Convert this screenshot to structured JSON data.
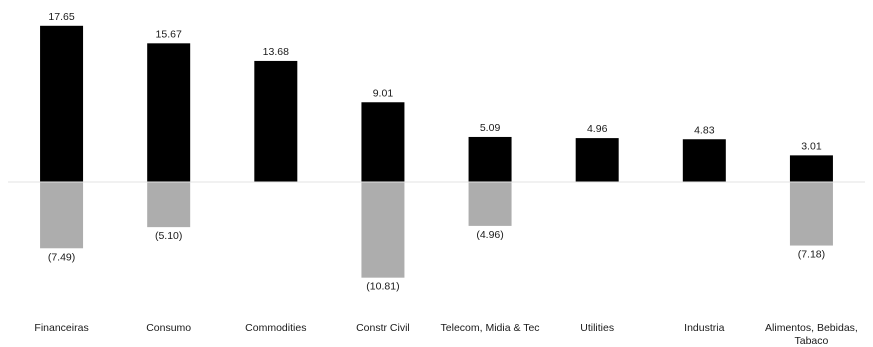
{
  "chart_data": {
    "type": "bar",
    "categories": [
      [
        "Financeiras"
      ],
      [
        "Consumo"
      ],
      [
        "Commodities"
      ],
      [
        "Constr Civil"
      ],
      [
        "Telecom, Midia & Tec"
      ],
      [
        "Utilities"
      ],
      [
        "Industria"
      ],
      [
        "Alimentos, Bebidas,",
        "Tabaco"
      ]
    ],
    "series": [
      {
        "values": [
          17.65,
          15.67,
          13.68,
          9.01,
          5.09,
          4.96,
          4.83,
          3.01
        ],
        "labels": [
          "17.65",
          "15.67",
          "13.68",
          "9.01",
          "5.09",
          "4.96",
          "4.83",
          "3.01"
        ],
        "color": "#000000"
      },
      {
        "values": [
          -7.49,
          -5.1,
          null,
          -10.81,
          -4.96,
          null,
          null,
          -7.18
        ],
        "labels": [
          "(7.49)",
          "(5.10)",
          null,
          "(10.81)",
          "(4.96)",
          null,
          null,
          "(7.18)"
        ],
        "color": "#adadad"
      }
    ],
    "title": "",
    "xlabel": "",
    "ylabel": "",
    "ylim": [
      -11,
      18
    ],
    "grid": false,
    "legend": "none"
  }
}
